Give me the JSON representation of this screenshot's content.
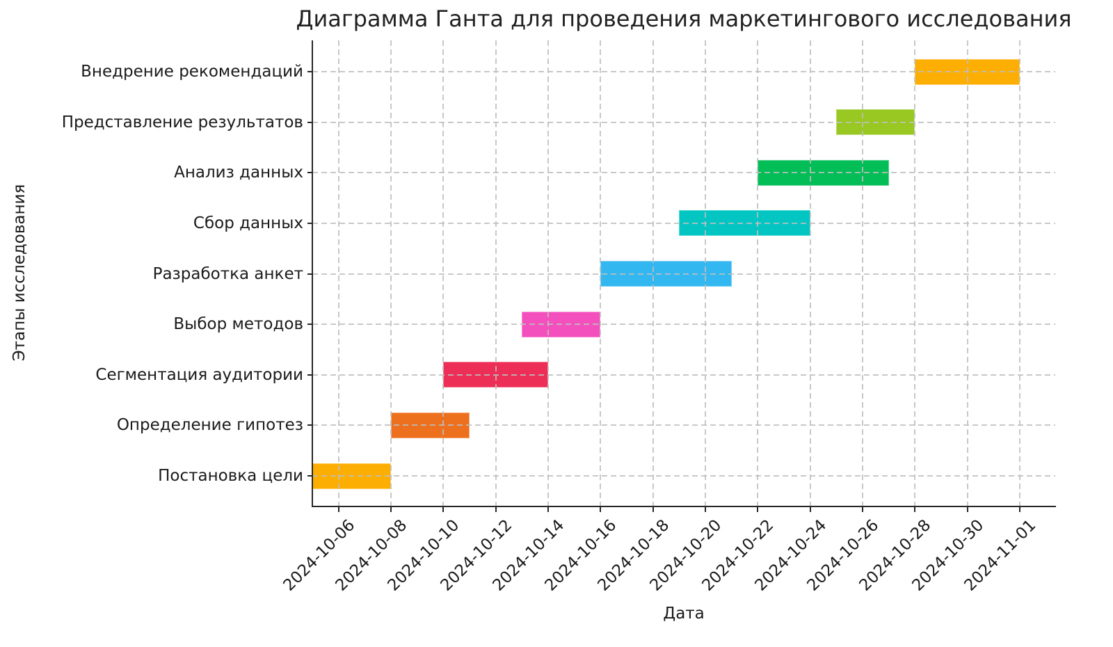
{
  "chart_data": {
    "type": "bar",
    "subtype": "gantt-horizontal",
    "title": "Диаграмма Ганта для проведения маркетингового исследования",
    "xlabel": "Дата",
    "ylabel": "Этапы исследования",
    "grid": "dashed-both-axes",
    "legend": "none",
    "x_axis_start": "2024-10-05",
    "x_tick_labels": [
      "2024-10-06",
      "2024-10-08",
      "2024-10-10",
      "2024-10-12",
      "2024-10-14",
      "2024-10-16",
      "2024-10-18",
      "2024-10-20",
      "2024-10-22",
      "2024-10-24",
      "2024-10-26",
      "2024-10-28",
      "2024-10-30",
      "2024-11-01"
    ],
    "x_tick_rotation_deg": 45,
    "tasks_bottom_to_top": [
      {
        "label": "Постановка цели",
        "start": "2024-10-05",
        "end": "2024-10-08",
        "color": "#FCAE03"
      },
      {
        "label": "Определение гипотез",
        "start": "2024-10-08",
        "end": "2024-10-11",
        "color": "#ED701E"
      },
      {
        "label": "Сегментация аудитории",
        "start": "2024-10-10",
        "end": "2024-10-14",
        "color": "#ED2E56"
      },
      {
        "label": "Выбор методов",
        "start": "2024-10-13",
        "end": "2024-10-16",
        "color": "#F350BE"
      },
      {
        "label": "Разработка анкет",
        "start": "2024-10-16",
        "end": "2024-10-21",
        "color": "#33B7F0"
      },
      {
        "label": "Сбор данных",
        "start": "2024-10-19",
        "end": "2024-10-24",
        "color": "#03C6C3"
      },
      {
        "label": "Анализ данных",
        "start": "2024-10-22",
        "end": "2024-10-27",
        "color": "#03BD57"
      },
      {
        "label": "Представление результатов",
        "start": "2024-10-25",
        "end": "2024-10-28",
        "color": "#98C821"
      },
      {
        "label": "Внедрение рекомендаций",
        "start": "2024-10-28",
        "end": "2024-11-01",
        "color": "#FCAE03"
      }
    ]
  }
}
